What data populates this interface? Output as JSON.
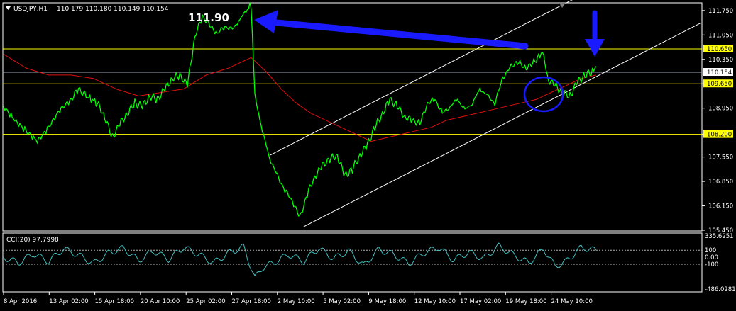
{
  "header": {
    "symbol_label": "USDJPY,H1",
    "ohlc": "110.179 110.180 110.149 110.154"
  },
  "annotation": {
    "peak_label": "111.90"
  },
  "indicator": {
    "label": "CCI(20) 97.7998",
    "axis": [
      "335.6251",
      "100",
      "0.00",
      "-100",
      "-486.0281"
    ]
  },
  "colors": {
    "background": "#000000",
    "price_line": "#00ff00",
    "moving_average": "#e01010",
    "support_resistance": "#ffff00",
    "channel": "#ffffff",
    "arrows": "#1a1aff",
    "cci_line": "#40c0c0",
    "axis": "#ffffff"
  },
  "chart_data": {
    "type": "line",
    "symbol": "USDJPY",
    "timeframe": "H1",
    "x_tick_labels": [
      "8 Apr 2016",
      "13 Apr 02:00",
      "15 Apr 18:00",
      "20 Apr 10:00",
      "25 Apr 02:00",
      "27 Apr 18:00",
      "2 May 10:00",
      "5 May 02:00",
      "9 May 18:00",
      "12 May 10:00",
      "17 May 02:00",
      "19 May 18:00",
      "24 May 10:00"
    ],
    "y_tick_labels": [
      "111.750",
      "111.050",
      "110.350",
      "109.650",
      "108.950",
      "108.200",
      "107.550",
      "106.850",
      "106.150",
      "105.450"
    ],
    "ylim": [
      105.45,
      111.95
    ],
    "current_price": "110.154",
    "horizontal_levels": [
      "110.650",
      "109.650",
      "108.200"
    ],
    "price_path": [
      [
        0,
        109.0
      ],
      [
        3,
        108.6
      ],
      [
        6,
        108.3
      ],
      [
        9,
        108.0
      ],
      [
        12,
        108.4
      ],
      [
        15,
        108.9
      ],
      [
        18,
        109.2
      ],
      [
        20,
        109.5
      ],
      [
        22,
        109.3
      ],
      [
        25,
        109.1
      ],
      [
        27,
        108.7
      ],
      [
        29,
        108.1
      ],
      [
        31,
        108.5
      ],
      [
        33,
        108.8
      ],
      [
        35,
        109.1
      ],
      [
        37,
        109.0
      ],
      [
        39,
        109.3
      ],
      [
        41,
        109.2
      ],
      [
        43,
        109.5
      ],
      [
        45,
        109.8
      ],
      [
        47,
        109.9
      ],
      [
        49,
        109.6
      ],
      [
        51,
        111.0
      ],
      [
        53,
        111.6
      ],
      [
        55,
        111.3
      ],
      [
        57,
        111.1
      ],
      [
        59,
        111.3
      ],
      [
        61,
        111.2
      ],
      [
        63,
        111.5
      ],
      [
        65,
        111.8
      ],
      [
        66,
        111.9
      ],
      [
        67,
        109.3
      ],
      [
        69,
        108.3
      ],
      [
        71,
        107.5
      ],
      [
        73,
        107.0
      ],
      [
        75,
        106.6
      ],
      [
        77,
        106.3
      ],
      [
        79,
        105.8
      ],
      [
        81,
        106.5
      ],
      [
        83,
        107.0
      ],
      [
        85,
        107.3
      ],
      [
        87,
        107.5
      ],
      [
        89,
        107.6
      ],
      [
        91,
        107.0
      ],
      [
        93,
        107.2
      ],
      [
        95,
        107.6
      ],
      [
        97,
        107.9
      ],
      [
        99,
        108.4
      ],
      [
        101,
        108.8
      ],
      [
        103,
        109.2
      ],
      [
        105,
        109.0
      ],
      [
        107,
        108.7
      ],
      [
        109,
        108.6
      ],
      [
        111,
        108.5
      ],
      [
        113,
        109.1
      ],
      [
        115,
        109.2
      ],
      [
        117,
        108.8
      ],
      [
        119,
        109.0
      ],
      [
        121,
        109.2
      ],
      [
        123,
        108.9
      ],
      [
        125,
        109.1
      ],
      [
        127,
        109.5
      ],
      [
        129,
        109.3
      ],
      [
        131,
        109.1
      ],
      [
        133,
        109.8
      ],
      [
        135,
        110.1
      ],
      [
        137,
        110.3
      ],
      [
        139,
        110.1
      ],
      [
        141,
        110.2
      ],
      [
        143,
        110.5
      ],
      [
        144,
        110.5
      ],
      [
        145,
        109.8
      ],
      [
        147,
        109.6
      ],
      [
        149,
        109.4
      ],
      [
        151,
        109.3
      ],
      [
        153,
        109.7
      ],
      [
        155,
        109.9
      ],
      [
        157,
        110.0
      ],
      [
        158,
        110.15
      ]
    ],
    "moving_average_path": [
      [
        0,
        110.5
      ],
      [
        6,
        110.1
      ],
      [
        12,
        109.9
      ],
      [
        18,
        109.9
      ],
      [
        24,
        109.8
      ],
      [
        30,
        109.5
      ],
      [
        36,
        109.3
      ],
      [
        42,
        109.4
      ],
      [
        48,
        109.5
      ],
      [
        54,
        109.9
      ],
      [
        60,
        110.1
      ],
      [
        66,
        110.4
      ],
      [
        70,
        110.0
      ],
      [
        74,
        109.5
      ],
      [
        78,
        109.1
      ],
      [
        82,
        108.8
      ],
      [
        86,
        108.6
      ],
      [
        90,
        108.4
      ],
      [
        94,
        108.2
      ],
      [
        98,
        108.0
      ],
      [
        102,
        108.1
      ],
      [
        106,
        108.2
      ],
      [
        110,
        108.3
      ],
      [
        114,
        108.4
      ],
      [
        118,
        108.6
      ],
      [
        122,
        108.7
      ],
      [
        126,
        108.8
      ],
      [
        130,
        108.9
      ],
      [
        134,
        109.0
      ],
      [
        138,
        109.1
      ],
      [
        142,
        109.2
      ],
      [
        146,
        109.4
      ],
      [
        150,
        109.6
      ],
      [
        154,
        109.8
      ],
      [
        158,
        109.9
      ]
    ],
    "channel_lines": [
      [
        [
          71,
          107.6
        ],
        [
          156,
          112.3
        ]
      ],
      [
        [
          80,
          105.55
        ],
        [
          186,
          111.4
        ]
      ]
    ],
    "cci_ylim": [
      -486.0281,
      335.6251
    ],
    "cci_levels": [
      100,
      -100
    ],
    "cci_path": [
      [
        0,
        0
      ],
      [
        4,
        -80
      ],
      [
        8,
        50
      ],
      [
        12,
        -60
      ],
      [
        16,
        120
      ],
      [
        20,
        30
      ],
      [
        24,
        -90
      ],
      [
        28,
        60
      ],
      [
        32,
        130
      ],
      [
        36,
        -50
      ],
      [
        40,
        90
      ],
      [
        44,
        -30
      ],
      [
        48,
        140
      ],
      [
        52,
        40
      ],
      [
        56,
        -80
      ],
      [
        60,
        60
      ],
      [
        64,
        150
      ],
      [
        67,
        -300
      ],
      [
        69,
        -150
      ],
      [
        72,
        -80
      ],
      [
        76,
        40
      ],
      [
        80,
        -60
      ],
      [
        84,
        130
      ],
      [
        88,
        -20
      ],
      [
        92,
        90
      ],
      [
        96,
        -120
      ],
      [
        100,
        110
      ],
      [
        104,
        40
      ],
      [
        108,
        -90
      ],
      [
        112,
        60
      ],
      [
        116,
        140
      ],
      [
        120,
        -40
      ],
      [
        124,
        70
      ],
      [
        128,
        -20
      ],
      [
        132,
        160
      ],
      [
        136,
        30
      ],
      [
        140,
        -80
      ],
      [
        144,
        120
      ],
      [
        147,
        -130
      ],
      [
        150,
        -60
      ],
      [
        154,
        140
      ],
      [
        158,
        98
      ]
    ]
  }
}
